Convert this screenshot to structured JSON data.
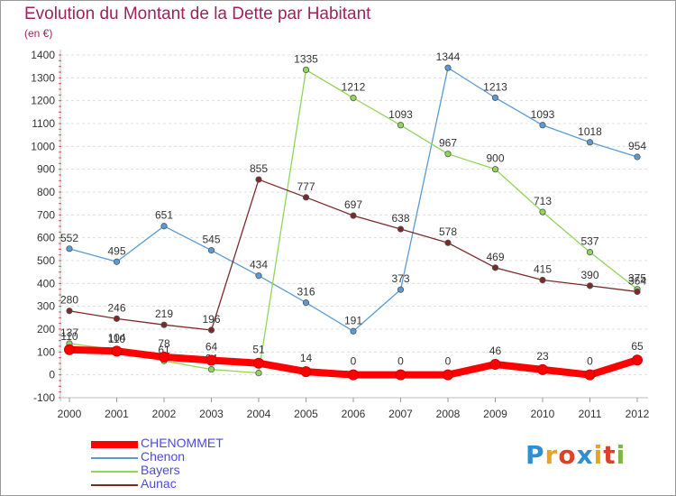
{
  "title": "Evolution du Montant de la Dette par Habitant",
  "unit_label": "(en €)",
  "logo": {
    "text": "Proxiti",
    "letter_colors": [
      "#2f8fd6",
      "#f0a020",
      "#e0402a",
      "#2f8fd6",
      "#f0a020",
      "#e0402a",
      "#7ab648"
    ]
  },
  "chart_data": {
    "type": "line",
    "title": "Evolution du Montant de la Dette par Habitant",
    "ylabel": "(en €)",
    "x": [
      "2000",
      "2001",
      "2002",
      "2003",
      "2004",
      "2005",
      "2006",
      "2007",
      "2008",
      "2009",
      "2010",
      "2011",
      "2012"
    ],
    "ylim": [
      -100,
      1400
    ],
    "yticks": [
      -100,
      0,
      100,
      200,
      300,
      400,
      500,
      600,
      700,
      800,
      900,
      1000,
      1100,
      1200,
      1300,
      1400
    ],
    "grid": "horizontal-dashed",
    "legend_position": "bottom-left",
    "series": [
      {
        "name": "CHENOMMET",
        "color": "#ff0000",
        "emphasis": "thick",
        "values": [
          110,
          104,
          78,
          64,
          51,
          14,
          0,
          0,
          0,
          46,
          23,
          0,
          65
        ],
        "labels": [
          "110",
          "104",
          "78",
          "64",
          "51",
          "14",
          "0",
          "0",
          "0",
          "46",
          "23",
          "0",
          "65"
        ]
      },
      {
        "name": "Chenon",
        "color": "#5a9bd4",
        "values": [
          552,
          495,
          651,
          545,
          434,
          316,
          191,
          373,
          1344,
          1213,
          1093,
          1018,
          954
        ],
        "labels": [
          "552",
          "495",
          "651",
          "545",
          "434",
          "316",
          "191",
          "373",
          "1344",
          "1213",
          "1093",
          "1018",
          "954"
        ]
      },
      {
        "name": "Bayers",
        "color": "#8fd65a",
        "values": [
          137,
          110,
          61,
          24,
          8,
          1335,
          1212,
          1093,
          967,
          900,
          713,
          537,
          375
        ],
        "labels": [
          "137",
          "110",
          "61",
          "24",
          "8",
          "1335",
          "1212",
          "1093",
          "967",
          "900",
          "713",
          "537",
          "375"
        ]
      },
      {
        "name": "Aunac",
        "color": "#7b2a2a",
        "values": [
          280,
          246,
          219,
          196,
          855,
          777,
          697,
          638,
          578,
          469,
          415,
          390,
          364
        ],
        "labels": [
          "280",
          "246",
          "219",
          "196",
          "855",
          "777",
          "697",
          "638",
          "578",
          "469",
          "415",
          "390",
          "364"
        ]
      }
    ]
  }
}
